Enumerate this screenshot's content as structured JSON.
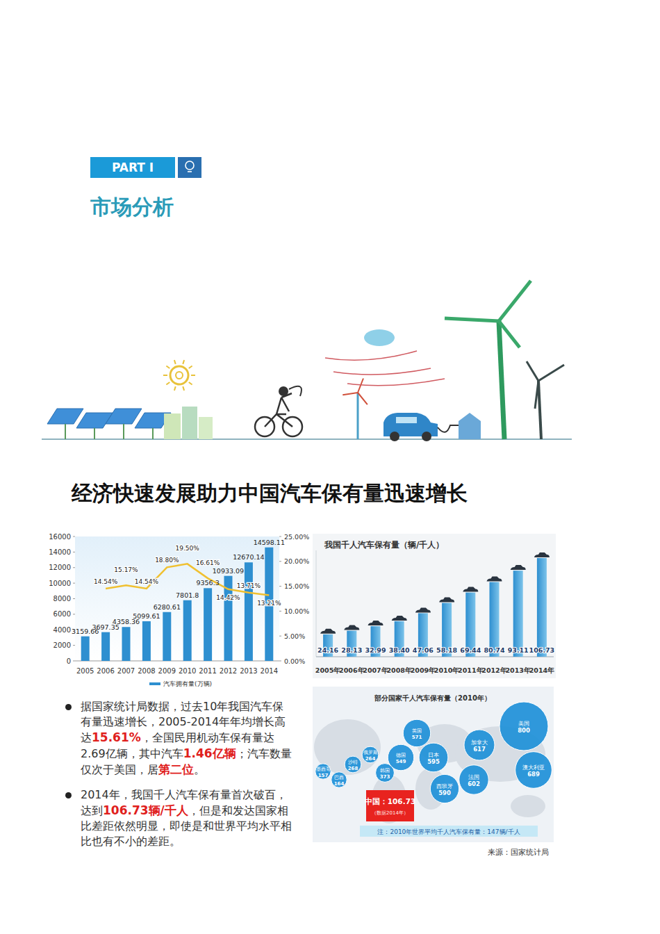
{
  "header": {
    "part": "PART I",
    "section": "市场分析"
  },
  "title": "经济快速发展助力中国汽车保有量迅速增长",
  "chart_data": [
    {
      "type": "bar",
      "categories": [
        "2005",
        "2006",
        "2007",
        "2008",
        "2009",
        "2010",
        "2011",
        "2012",
        "2013",
        "2014"
      ],
      "series": [
        {
          "name": "汽车拥有量(万辆)",
          "type": "bar",
          "color": "#2e8fd0",
          "values": [
            3159.66,
            3697.35,
            4358.36,
            5099.61,
            6280.61,
            7801.8,
            9356.3,
            10933.09,
            12670.14,
            14598.11
          ]
        },
        {
          "type": "line",
          "axis": "y2",
          "color": "#f0c030",
          "line_style": "solid",
          "values": [
            null,
            14.54,
            15.17,
            14.54,
            18.8,
            19.5,
            16.61,
            14.42,
            13.71,
            13.21
          ],
          "value_labels": [
            null,
            "14.54%",
            "15.17%",
            "14.54%",
            "18.80%",
            "19.50%",
            "16.61%",
            "14.42%",
            "13.71%",
            "13.21%"
          ]
        }
      ],
      "ylim": [
        0,
        16000
      ],
      "yticks": [
        0,
        2000,
        4000,
        6000,
        8000,
        10000,
        12000,
        14000,
        16000
      ],
      "y2lim": [
        0,
        25
      ],
      "y2ticks": [
        {
          "value": 0,
          "label": "0.00%"
        },
        {
          "value": 5,
          "label": "5.00%"
        },
        {
          "value": 10,
          "label": "10.00%"
        },
        {
          "value": 15,
          "label": "15.00%"
        },
        {
          "value": 20,
          "label": "20.00%"
        },
        {
          "value": 25,
          "label": "25.00%"
        }
      ],
      "legend": "bottom",
      "data_labels": true,
      "grid": false
    },
    {
      "type": "bar",
      "title": "我国千人汽车保有量（辆/千人）",
      "categories": [
        "2005年",
        "2006年",
        "2007年",
        "2008年",
        "2009年",
        "2010年",
        "2011年",
        "2012年",
        "2013年",
        "2014年"
      ],
      "values": [
        24.16,
        28.13,
        32.99,
        38.4,
        47.06,
        58.18,
        69.44,
        80.74,
        93.11,
        106.73
      ],
      "value_labels": [
        "24.16",
        "28.13",
        "32.99",
        "38.40",
        "47.06",
        "58.18",
        "69.44",
        "80.74",
        "93.11",
        "106.73"
      ],
      "color": "#2e8fd0",
      "ylim": [
        0,
        115
      ],
      "tick_labels": "x",
      "data_labels": true,
      "grid": false
    },
    {
      "type": "bubble",
      "title": "部分国家千人汽车保有量（2010年）",
      "categories": [
        "墨西哥",
        "巴西",
        "沙特",
        "俄罗斯",
        "韩国",
        "德国",
        "英国",
        "日本",
        "西班牙",
        "法国",
        "加拿大",
        "美国",
        "澳大利亚"
      ],
      "values": [
        157,
        164,
        268,
        264,
        373,
        549,
        571,
        595,
        590,
        602,
        617,
        800,
        689
      ],
      "color": "#1e90d8",
      "data_labels": true,
      "annotations": [
        "中国：106.73",
        "（数据2014年）",
        "注：2010年世界平均千人汽车保有量：147辆/千人"
      ]
    }
  ],
  "bullets": [
    [
      {
        "text": "据国家统计局数据，过去10年我国汽车保有量迅速增长，2005-2014年年均增长高达",
        "emphasis": false
      },
      {
        "text": "15.61%",
        "emphasis": true
      },
      {
        "text": "，全国民用机动车保有量达2.69亿辆，其中汽车",
        "emphasis": false
      },
      {
        "text": "1.46亿辆",
        "emphasis": true
      },
      {
        "text": "；汽车数量仅次于美国，居",
        "emphasis": false
      },
      {
        "text": "第二位",
        "emphasis": true
      },
      {
        "text": "。",
        "emphasis": false
      }
    ],
    [
      {
        "text": "2014年，我国千人汽车保有量首次破百，达到",
        "emphasis": false
      },
      {
        "text": "106.73辆/千人",
        "emphasis": true
      },
      {
        "text": "，但是和发达国家相比差距依然明显，即使是和世界平均水平相比也有不小的差距。",
        "emphasis": false
      }
    ]
  ],
  "source": "来源：国家统计局"
}
